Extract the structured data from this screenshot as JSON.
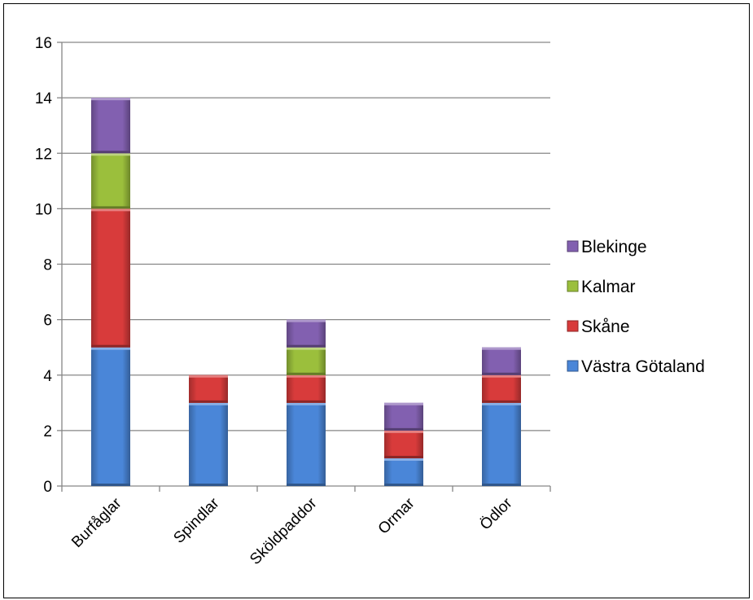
{
  "chart_data": {
    "type": "bar",
    "stacked": true,
    "title": "",
    "xlabel": "",
    "ylabel": "",
    "ylim": [
      0,
      16
    ],
    "yticks": [
      0,
      2,
      4,
      6,
      8,
      10,
      12,
      14,
      16
    ],
    "grid": true,
    "legend_position": "right",
    "categories": [
      "Burfåglar",
      "Spindlar",
      "Sköldpaddor",
      "Ormar",
      "Ödlor"
    ],
    "series": [
      {
        "name": "Västra Götaland",
        "color": "#4a86d8",
        "values": [
          5,
          3,
          3,
          1,
          3
        ]
      },
      {
        "name": "Skåne",
        "color": "#d83b3b",
        "values": [
          5,
          1,
          1,
          1,
          1
        ]
      },
      {
        "name": "Kalmar",
        "color": "#9bbf3c",
        "values": [
          2,
          0,
          1,
          0,
          0
        ]
      },
      {
        "name": "Blekinge",
        "color": "#8260b0",
        "values": [
          2,
          0,
          1,
          1,
          1
        ]
      }
    ],
    "legend_order": [
      "Blekinge",
      "Kalmar",
      "Skåne",
      "Västra Götaland"
    ]
  }
}
